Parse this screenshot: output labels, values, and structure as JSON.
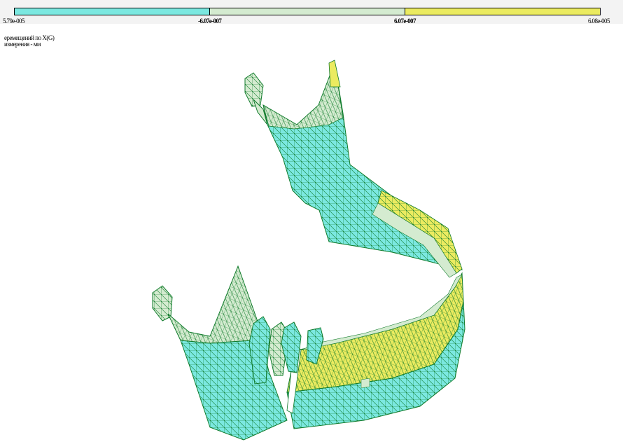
{
  "legend": {
    "segments": [
      {
        "color": "#7be8e0"
      },
      {
        "color": "#d4ebd0"
      },
      {
        "color": "#ebeb60"
      }
    ],
    "ticks": [
      "5.79e-005",
      "-6.07e-007",
      "6.07e-007",
      "6.08e-005"
    ],
    "border_color": "#000000"
  },
  "caption": {
    "line1": "еремещений по X(G)",
    "line2": "измерения - мм"
  },
  "model": {
    "mesh_color": "#0f7a2a",
    "colors": {
      "cyan": "#7be8e0",
      "pale": "#d4ebd0",
      "yellow": "#ebeb60"
    }
  }
}
